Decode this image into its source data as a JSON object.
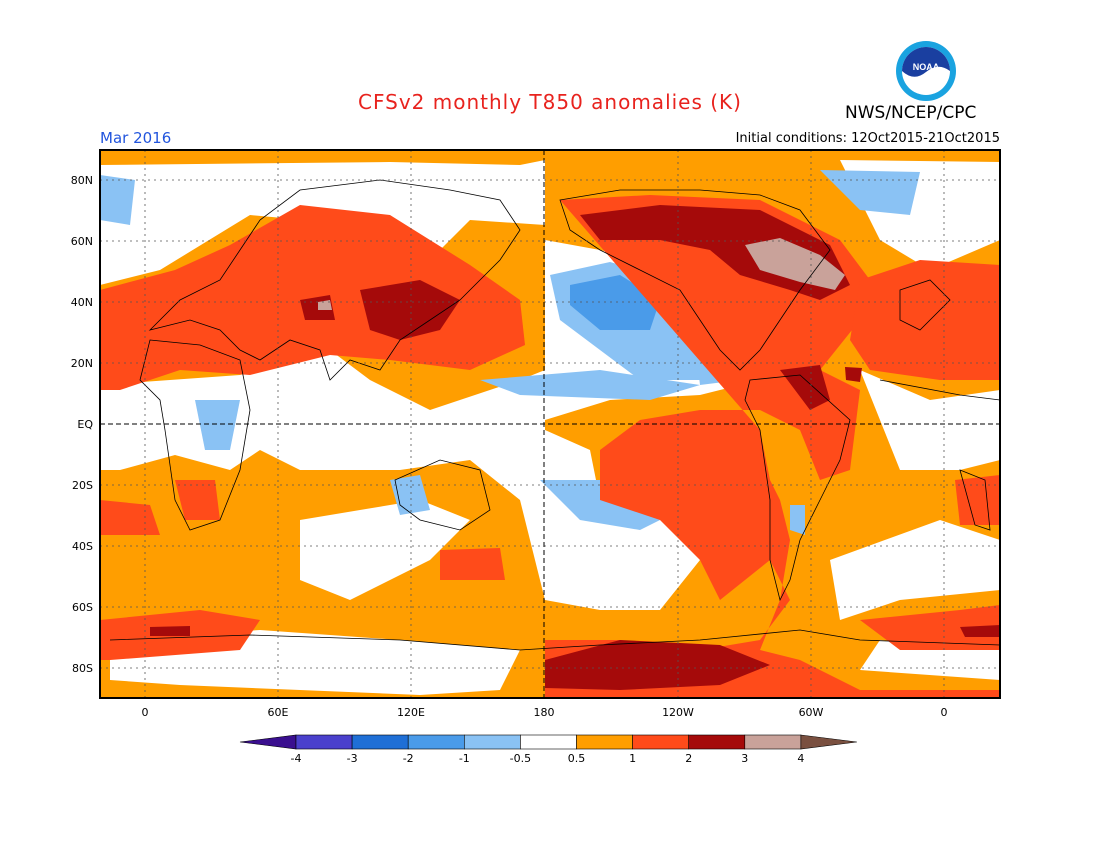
{
  "header": {
    "title": "CFSv2 monthly T850 anomalies (K)",
    "org": "NWS/NCEP/CPC",
    "valid": "Mar 2016",
    "init": "Initial conditions: 12Oct2015-21Oct2015",
    "logo_text": "NOAA"
  },
  "colors": {
    "title": "#e8231e",
    "valid": "#2255dd",
    "lvl_m4": "#2a0a8a",
    "lvl_m3": "#4040cc",
    "lvl_m2": "#1f6fd6",
    "lvl_m1": "#4a9be9",
    "lvl_m05": "#8ac2f4",
    "lvl_0": "#ffffff",
    "lvl_05": "#ff9e00",
    "lvl_1": "#ff4b1a",
    "lvl_2": "#e63a12",
    "lvl_3": "#a50a0a",
    "lvl_4": "#c9a29a"
  },
  "map": {
    "lat_labels": [
      "80N",
      "60N",
      "40N",
      "20N",
      "EQ",
      "20S",
      "40S",
      "60S",
      "80S"
    ],
    "lon_labels": [
      "0",
      "60E",
      "120E",
      "180",
      "120W",
      "60W",
      "0"
    ]
  },
  "colorbar": {
    "labels": [
      "-4",
      "-3",
      "-2",
      "-1",
      "-0.5",
      "0.5",
      "1",
      "2",
      "3",
      "4"
    ],
    "colors": [
      "#3a0f8f",
      "#4a40cc",
      "#1f6fd6",
      "#4a9be9",
      "#8ac2f4",
      "#ffffff",
      "#ff9e00",
      "#ff4b1a",
      "#a50a0a",
      "#c9a29a"
    ]
  }
}
